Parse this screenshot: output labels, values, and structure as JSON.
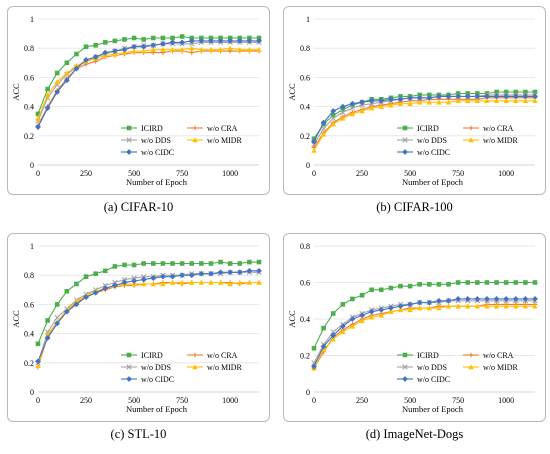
{
  "chart_data": [
    {
      "type": "line",
      "caption": "(a) CIFAR-10",
      "xlabel": "Number of Epoch",
      "ylabel": "ACC",
      "xlim": [
        0,
        1150
      ],
      "ylim": [
        0,
        1
      ],
      "xticks": [
        0,
        250,
        500,
        750,
        1000
      ],
      "yticks": [
        0,
        0.2,
        0.4,
        0.6,
        0.8,
        1
      ],
      "ytick_labels": [
        "0",
        "0.2",
        "0.4",
        "0.6",
        "0.8",
        "1"
      ],
      "legend_position": "lower-right",
      "x": [
        0,
        50,
        100,
        150,
        200,
        250,
        300,
        350,
        400,
        450,
        500,
        550,
        600,
        650,
        700,
        750,
        800,
        850,
        900,
        950,
        1000,
        1050,
        1100,
        1150
      ],
      "series": [
        {
          "name": "ICIRD",
          "color": "#4cae4c",
          "marker": "square",
          "values": [
            0.35,
            0.52,
            0.63,
            0.7,
            0.76,
            0.81,
            0.82,
            0.84,
            0.85,
            0.86,
            0.87,
            0.86,
            0.87,
            0.87,
            0.87,
            0.88,
            0.87,
            0.87,
            0.87,
            0.87,
            0.87,
            0.87,
            0.87,
            0.87
          ]
        },
        {
          "name": "w/o CRA",
          "color": "#ed7d31",
          "marker": "cross",
          "values": [
            0.27,
            0.4,
            0.51,
            0.59,
            0.66,
            0.69,
            0.71,
            0.74,
            0.75,
            0.76,
            0.77,
            0.77,
            0.77,
            0.77,
            0.78,
            0.78,
            0.77,
            0.78,
            0.78,
            0.78,
            0.78,
            0.78,
            0.78,
            0.78
          ]
        },
        {
          "name": "w/o DDS",
          "color": "#a5a5a5",
          "marker": "x",
          "values": [
            0.3,
            0.46,
            0.55,
            0.62,
            0.67,
            0.71,
            0.74,
            0.76,
            0.78,
            0.8,
            0.81,
            0.82,
            0.82,
            0.83,
            0.83,
            0.83,
            0.83,
            0.84,
            0.84,
            0.84,
            0.84,
            0.84,
            0.84,
            0.84
          ]
        },
        {
          "name": "w/o MIDR",
          "color": "#ffc000",
          "marker": "triangle",
          "values": [
            0.32,
            0.48,
            0.57,
            0.63,
            0.68,
            0.71,
            0.73,
            0.75,
            0.76,
            0.77,
            0.78,
            0.78,
            0.79,
            0.79,
            0.79,
            0.79,
            0.8,
            0.79,
            0.79,
            0.79,
            0.8,
            0.79,
            0.79,
            0.79
          ]
        },
        {
          "name": "w/o CIDC",
          "color": "#4472c4",
          "marker": "diamond",
          "values": [
            0.26,
            0.39,
            0.5,
            0.58,
            0.66,
            0.72,
            0.74,
            0.77,
            0.78,
            0.79,
            0.81,
            0.81,
            0.82,
            0.83,
            0.84,
            0.84,
            0.85,
            0.85,
            0.85,
            0.85,
            0.85,
            0.85,
            0.85,
            0.85
          ]
        }
      ]
    },
    {
      "type": "line",
      "caption": "(b) CIFAR-100",
      "xlabel": "Number of Epoch",
      "ylabel": "ACC",
      "xlim": [
        0,
        1150
      ],
      "ylim": [
        0,
        1
      ],
      "xticks": [
        0,
        250,
        500,
        750,
        1000
      ],
      "yticks": [
        0,
        0.2,
        0.4,
        0.6,
        0.8,
        1
      ],
      "ytick_labels": [
        "0",
        "0.2",
        "0.4",
        "0.6",
        "0.8",
        "1"
      ],
      "legend_position": "lower-right",
      "x": [
        0,
        50,
        100,
        150,
        200,
        250,
        300,
        350,
        400,
        450,
        500,
        550,
        600,
        650,
        700,
        750,
        800,
        850,
        900,
        950,
        1000,
        1050,
        1100,
        1150
      ],
      "series": [
        {
          "name": "ICIRD",
          "color": "#4cae4c",
          "marker": "square",
          "values": [
            0.18,
            0.28,
            0.34,
            0.38,
            0.41,
            0.43,
            0.45,
            0.45,
            0.46,
            0.47,
            0.47,
            0.48,
            0.48,
            0.48,
            0.48,
            0.49,
            0.49,
            0.49,
            0.49,
            0.5,
            0.5,
            0.5,
            0.5,
            0.5
          ]
        },
        {
          "name": "w/o CRA",
          "color": "#ed7d31",
          "marker": "cross",
          "values": [
            0.12,
            0.22,
            0.29,
            0.33,
            0.36,
            0.38,
            0.4,
            0.41,
            0.42,
            0.43,
            0.44,
            0.44,
            0.45,
            0.45,
            0.45,
            0.45,
            0.45,
            0.45,
            0.46,
            0.46,
            0.46,
            0.46,
            0.46,
            0.46
          ]
        },
        {
          "name": "w/o DDS",
          "color": "#a5a5a5",
          "marker": "x",
          "values": [
            0.14,
            0.25,
            0.32,
            0.36,
            0.39,
            0.41,
            0.42,
            0.43,
            0.44,
            0.45,
            0.46,
            0.46,
            0.46,
            0.47,
            0.47,
            0.47,
            0.47,
            0.47,
            0.48,
            0.48,
            0.48,
            0.48,
            0.48,
            0.48
          ]
        },
        {
          "name": "w/o MIDR",
          "color": "#ffc000",
          "marker": "triangle",
          "values": [
            0.1,
            0.21,
            0.28,
            0.32,
            0.35,
            0.37,
            0.39,
            0.4,
            0.41,
            0.42,
            0.42,
            0.43,
            0.43,
            0.43,
            0.43,
            0.44,
            0.44,
            0.44,
            0.44,
            0.44,
            0.44,
            0.44,
            0.44,
            0.44
          ]
        },
        {
          "name": "w/o CIDC",
          "color": "#4472c4",
          "marker": "diamond",
          "values": [
            0.16,
            0.29,
            0.37,
            0.4,
            0.42,
            0.43,
            0.44,
            0.44,
            0.45,
            0.45,
            0.46,
            0.46,
            0.46,
            0.47,
            0.47,
            0.47,
            0.47,
            0.47,
            0.47,
            0.47,
            0.47,
            0.47,
            0.47,
            0.47
          ]
        }
      ]
    },
    {
      "type": "line",
      "caption": "(c) STL-10",
      "xlabel": "Number of Epoch",
      "ylabel": "ACC",
      "xlim": [
        0,
        1150
      ],
      "ylim": [
        0,
        1
      ],
      "xticks": [
        0,
        250,
        500,
        750,
        1000
      ],
      "yticks": [
        0,
        0.2,
        0.4,
        0.6,
        0.8,
        1
      ],
      "ytick_labels": [
        "0",
        "0.2",
        "0.4",
        "0.6",
        "0.8",
        "1"
      ],
      "legend_position": "lower-right",
      "x": [
        0,
        50,
        100,
        150,
        200,
        250,
        300,
        350,
        400,
        450,
        500,
        550,
        600,
        650,
        700,
        750,
        800,
        850,
        900,
        950,
        1000,
        1050,
        1100,
        1150
      ],
      "series": [
        {
          "name": "ICIRD",
          "color": "#4cae4c",
          "marker": "square",
          "values": [
            0.33,
            0.49,
            0.6,
            0.69,
            0.74,
            0.79,
            0.81,
            0.83,
            0.86,
            0.87,
            0.87,
            0.88,
            0.88,
            0.88,
            0.88,
            0.88,
            0.88,
            0.88,
            0.88,
            0.89,
            0.88,
            0.88,
            0.89,
            0.89
          ]
        },
        {
          "name": "w/o CRA",
          "color": "#ed7d31",
          "marker": "cross",
          "values": [
            0.17,
            0.38,
            0.47,
            0.55,
            0.61,
            0.65,
            0.68,
            0.7,
            0.72,
            0.73,
            0.73,
            0.74,
            0.74,
            0.75,
            0.75,
            0.74,
            0.75,
            0.75,
            0.75,
            0.75,
            0.75,
            0.74,
            0.75,
            0.75
          ]
        },
        {
          "name": "w/o DDS",
          "color": "#a5a5a5",
          "marker": "x",
          "values": [
            0.2,
            0.41,
            0.51,
            0.57,
            0.63,
            0.67,
            0.7,
            0.73,
            0.75,
            0.77,
            0.78,
            0.79,
            0.79,
            0.8,
            0.8,
            0.8,
            0.81,
            0.81,
            0.81,
            0.81,
            0.82,
            0.82,
            0.82,
            0.82
          ]
        },
        {
          "name": "w/o MIDR",
          "color": "#ffc000",
          "marker": "triangle",
          "values": [
            0.18,
            0.39,
            0.48,
            0.56,
            0.62,
            0.66,
            0.69,
            0.71,
            0.73,
            0.74,
            0.74,
            0.74,
            0.74,
            0.74,
            0.75,
            0.75,
            0.75,
            0.75,
            0.75,
            0.75,
            0.74,
            0.75,
            0.75,
            0.75
          ]
        },
        {
          "name": "w/o CIDC",
          "color": "#4472c4",
          "marker": "diamond",
          "values": [
            0.21,
            0.37,
            0.47,
            0.55,
            0.6,
            0.65,
            0.68,
            0.71,
            0.73,
            0.75,
            0.76,
            0.77,
            0.78,
            0.79,
            0.79,
            0.8,
            0.8,
            0.81,
            0.81,
            0.82,
            0.82,
            0.82,
            0.83,
            0.83
          ]
        }
      ]
    },
    {
      "type": "line",
      "caption": "(d) ImageNet-Dogs",
      "xlabel": "Number of Epoch",
      "ylabel": "ACC",
      "xlim": [
        0,
        1150
      ],
      "ylim": [
        0,
        0.8
      ],
      "xticks": [
        0,
        250,
        500,
        750,
        1000
      ],
      "yticks": [
        0,
        0.2,
        0.4,
        0.6,
        0.8
      ],
      "ytick_labels": [
        "0",
        "0.2",
        "0.4",
        "0.6",
        "0.8"
      ],
      "legend_position": "lower-right",
      "x": [
        0,
        50,
        100,
        150,
        200,
        250,
        300,
        350,
        400,
        450,
        500,
        550,
        600,
        650,
        700,
        750,
        800,
        850,
        900,
        950,
        1000,
        1050,
        1100,
        1150
      ],
      "series": [
        {
          "name": "ICIRD",
          "color": "#4cae4c",
          "marker": "square",
          "values": [
            0.24,
            0.35,
            0.43,
            0.48,
            0.51,
            0.53,
            0.56,
            0.56,
            0.57,
            0.58,
            0.58,
            0.59,
            0.59,
            0.59,
            0.59,
            0.6,
            0.6,
            0.6,
            0.6,
            0.6,
            0.6,
            0.6,
            0.6,
            0.6
          ]
        },
        {
          "name": "w/o CRA",
          "color": "#ed7d31",
          "marker": "cross",
          "values": [
            0.13,
            0.22,
            0.3,
            0.34,
            0.37,
            0.4,
            0.42,
            0.43,
            0.44,
            0.45,
            0.46,
            0.46,
            0.46,
            0.47,
            0.47,
            0.47,
            0.47,
            0.47,
            0.48,
            0.48,
            0.48,
            0.48,
            0.48,
            0.48
          ]
        },
        {
          "name": "w/o DDS",
          "color": "#a5a5a5",
          "marker": "x",
          "values": [
            0.16,
            0.26,
            0.33,
            0.37,
            0.41,
            0.43,
            0.45,
            0.46,
            0.47,
            0.48,
            0.48,
            0.49,
            0.49,
            0.49,
            0.5,
            0.5,
            0.5,
            0.5,
            0.5,
            0.5,
            0.5,
            0.5,
            0.5,
            0.5
          ]
        },
        {
          "name": "w/o MIDR",
          "color": "#ffc000",
          "marker": "triangle",
          "values": [
            0.13,
            0.23,
            0.29,
            0.33,
            0.36,
            0.39,
            0.41,
            0.42,
            0.44,
            0.45,
            0.45,
            0.46,
            0.46,
            0.46,
            0.47,
            0.47,
            0.47,
            0.47,
            0.47,
            0.47,
            0.47,
            0.47,
            0.47,
            0.47
          ]
        },
        {
          "name": "w/o CIDC",
          "color": "#4472c4",
          "marker": "diamond",
          "values": [
            0.14,
            0.25,
            0.31,
            0.36,
            0.4,
            0.42,
            0.44,
            0.45,
            0.46,
            0.47,
            0.48,
            0.49,
            0.49,
            0.5,
            0.5,
            0.51,
            0.51,
            0.51,
            0.51,
            0.51,
            0.51,
            0.51,
            0.51,
            0.51
          ]
        }
      ]
    }
  ]
}
